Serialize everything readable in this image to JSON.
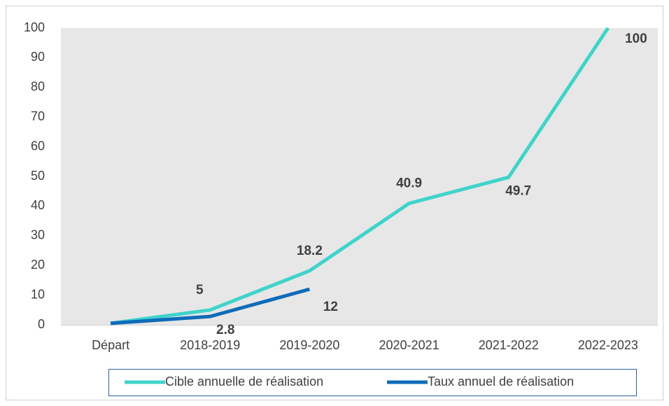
{
  "chart_data": {
    "type": "line",
    "categories": [
      "Départ",
      "2018-2019",
      "2019-2020",
      "2020-2021",
      "2021-2022",
      "2022-2023"
    ],
    "series": [
      {
        "name": "Cible annuelle de réalisation",
        "color": "#3fd3cc",
        "values": [
          0.5,
          5,
          18.2,
          40.9,
          49.7,
          100
        ],
        "value_labels": [
          null,
          "5",
          "18.2",
          "40.9",
          "49.7",
          "100"
        ]
      },
      {
        "name": "Taux annuel de réalisation",
        "color": "#0e6bb8",
        "values": [
          0.5,
          2.8,
          12,
          null,
          null,
          null
        ],
        "value_labels": [
          null,
          "2.8",
          "12",
          null,
          null,
          null
        ]
      }
    ],
    "ylim": [
      0,
      100
    ],
    "yticks": [
      0,
      10,
      20,
      30,
      40,
      50,
      60,
      70,
      80,
      90,
      100
    ],
    "grid": false,
    "legend": "bottom"
  }
}
